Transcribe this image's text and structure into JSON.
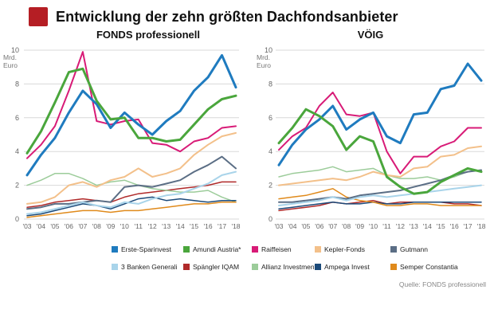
{
  "title": "Entwicklung der zehn größten Dachfondsanbieter",
  "accent_color": "#b51e24",
  "source": "Quelle: FONDS professionell",
  "chart_data": [
    {
      "type": "line",
      "title": "FONDS professionell",
      "ylabel": "Mrd. Euro",
      "ylim": [
        0,
        10
      ],
      "yticks": [
        0,
        2,
        4,
        6,
        8,
        10
      ],
      "grid": true,
      "x": [
        2003,
        2004,
        2005,
        2006,
        2007,
        2008,
        2009,
        2010,
        2011,
        2012,
        2013,
        2014,
        2015,
        2016,
        2017,
        2018
      ],
      "x_tick_labels": [
        "'03",
        "'04",
        "'05",
        "'06",
        "'07",
        "'08",
        "'09",
        "'10",
        "'11",
        "'12",
        "'13",
        "'14",
        "'15",
        "'16",
        "'17",
        "'18"
      ],
      "series": [
        {
          "name": "Erste-Sparinvest",
          "color": "#1f7bbf",
          "width": 3,
          "values": [
            2.6,
            3.8,
            4.8,
            6.3,
            7.6,
            6.8,
            5.4,
            6.3,
            5.6,
            5.0,
            5.8,
            6.4,
            7.6,
            8.4,
            9.7,
            7.8
          ]
        },
        {
          "name": "Amundi Austria*",
          "color": "#4aa63c",
          "width": 3,
          "values": [
            3.9,
            5.2,
            6.9,
            8.7,
            8.9,
            7.0,
            5.9,
            6.0,
            4.8,
            4.8,
            4.6,
            4.7,
            5.6,
            6.5,
            7.1,
            7.3
          ]
        },
        {
          "name": "Raiffeisen",
          "color": "#d81b77",
          "width": 2,
          "values": [
            3.6,
            4.4,
            5.5,
            7.6,
            9.9,
            5.8,
            5.6,
            5.8,
            5.9,
            4.5,
            4.4,
            4.0,
            4.6,
            4.8,
            5.4,
            5.5
          ]
        },
        {
          "name": "Kepler-Fonds",
          "color": "#f3c08a",
          "width": 2,
          "values": [
            0.9,
            1.0,
            1.3,
            2.0,
            2.2,
            1.9,
            2.3,
            2.5,
            3.0,
            2.5,
            2.7,
            3.0,
            3.8,
            4.4,
            4.9,
            5.1
          ]
        },
        {
          "name": "Gutmann",
          "color": "#5b6e85",
          "width": 2,
          "values": [
            0.6,
            0.7,
            0.9,
            0.9,
            1.0,
            1.1,
            1.0,
            1.9,
            2.0,
            1.9,
            2.1,
            2.3,
            2.8,
            3.2,
            3.7,
            3.0
          ]
        },
        {
          "name": "3 Banken Generali",
          "color": "#a9d4ea",
          "width": 2,
          "values": [
            0.3,
            0.4,
            0.6,
            0.8,
            1.0,
            0.8,
            0.7,
            1.0,
            0.9,
            1.2,
            1.4,
            1.5,
            1.8,
            2.1,
            2.6,
            2.8
          ]
        },
        {
          "name": "Spängler IQAM",
          "color": "#b02a2a",
          "width": 1.5,
          "values": [
            0.7,
            0.8,
            1.0,
            1.1,
            1.2,
            1.1,
            1.0,
            1.3,
            1.5,
            1.6,
            1.7,
            1.8,
            1.9,
            2.0,
            2.2,
            2.2
          ]
        },
        {
          "name": "Allianz Investment",
          "color": "#9ccc9a",
          "width": 1.5,
          "values": [
            2.0,
            2.3,
            2.7,
            2.7,
            2.4,
            2.0,
            2.2,
            2.3,
            2.0,
            1.8,
            1.7,
            1.6,
            1.6,
            1.7,
            1.3,
            1.0
          ]
        },
        {
          "name": "Ampega Invest",
          "color": "#1b4a7a",
          "width": 1.5,
          "values": [
            0.2,
            0.3,
            0.5,
            0.7,
            0.9,
            0.8,
            0.6,
            0.9,
            1.2,
            1.3,
            1.1,
            1.2,
            1.1,
            1.0,
            1.1,
            1.1
          ]
        },
        {
          "name": "Semper Constantia",
          "color": "#e08a1b",
          "width": 1.5,
          "values": [
            0.1,
            0.2,
            0.3,
            0.4,
            0.5,
            0.5,
            0.4,
            0.5,
            0.5,
            0.6,
            0.7,
            0.8,
            0.9,
            0.9,
            1.0,
            1.0
          ]
        }
      ]
    },
    {
      "type": "line",
      "title": "VÖIG",
      "ylabel": "Mrd. Euro",
      "ylim": [
        0,
        10
      ],
      "yticks": [
        0,
        2,
        4,
        6,
        8,
        10
      ],
      "grid": true,
      "x": [
        2003,
        2004,
        2005,
        2006,
        2007,
        2008,
        2009,
        2010,
        2011,
        2012,
        2013,
        2014,
        2015,
        2016,
        2017,
        2018
      ],
      "x_tick_labels": [
        "'03",
        "'04",
        "'05",
        "'06",
        "'07",
        "'08",
        "'09",
        "'10",
        "'11",
        "'12",
        "'13",
        "'14",
        "'15",
        "'16",
        "'17",
        "'18"
      ],
      "series": [
        {
          "name": "Erste-Sparinvest",
          "color": "#1f7bbf",
          "width": 3,
          "values": [
            3.2,
            4.4,
            5.3,
            5.9,
            6.7,
            5.3,
            5.9,
            6.3,
            4.9,
            4.5,
            6.2,
            6.3,
            7.7,
            7.9,
            9.2,
            8.2
          ]
        },
        {
          "name": "Amundi Austria*",
          "color": "#4aa63c",
          "width": 3,
          "values": [
            4.5,
            5.4,
            6.5,
            6.1,
            5.5,
            4.1,
            4.9,
            4.6,
            2.5,
            1.9,
            1.5,
            1.6,
            2.2,
            2.6,
            3.0,
            2.8
          ]
        },
        {
          "name": "Raiffeisen",
          "color": "#d81b77",
          "width": 2,
          "values": [
            4.1,
            4.9,
            5.4,
            6.7,
            7.5,
            6.2,
            6.1,
            6.3,
            4.0,
            2.7,
            3.7,
            3.7,
            4.3,
            4.6,
            5.4,
            5.4
          ]
        },
        {
          "name": "Kepler-Fonds",
          "color": "#f3c08a",
          "width": 2,
          "values": [
            2.0,
            2.1,
            2.2,
            2.3,
            2.4,
            2.3,
            2.5,
            2.8,
            2.6,
            2.5,
            3.0,
            3.1,
            3.7,
            3.8,
            4.2,
            4.3
          ]
        },
        {
          "name": "Gutmann",
          "color": "#5b6e85",
          "width": 2,
          "values": [
            1.0,
            1.0,
            1.1,
            1.2,
            1.3,
            1.2,
            1.4,
            1.5,
            1.6,
            1.7,
            1.9,
            2.1,
            2.3,
            2.6,
            2.8,
            2.9
          ]
        },
        {
          "name": "3 Banken Generali",
          "color": "#a9d4ea",
          "width": 2,
          "values": [
            0.8,
            0.9,
            1.0,
            1.1,
            1.3,
            1.1,
            1.3,
            1.4,
            1.3,
            1.4,
            1.5,
            1.6,
            1.7,
            1.8,
            1.9,
            2.0
          ]
        },
        {
          "name": "Spängler IQAM",
          "color": "#b02a2a",
          "width": 1.5,
          "values": [
            0.5,
            0.6,
            0.7,
            0.8,
            1.0,
            0.9,
            1.0,
            1.1,
            0.9,
            1.0,
            1.0,
            1.0,
            1.0,
            0.9,
            0.9,
            0.8
          ]
        },
        {
          "name": "Allianz Investment",
          "color": "#9ccc9a",
          "width": 1.5,
          "values": [
            2.5,
            2.7,
            2.8,
            2.9,
            3.1,
            2.8,
            2.9,
            3.0,
            2.6,
            2.4,
            2.4,
            2.5,
            2.3,
            2.5,
            2.8,
            2.9
          ]
        },
        {
          "name": "Ampega Invest",
          "color": "#1b4a7a",
          "width": 1.5,
          "values": [
            0.6,
            0.7,
            0.8,
            0.9,
            1.0,
            0.9,
            0.9,
            1.0,
            0.9,
            0.9,
            1.0,
            1.0,
            1.0,
            1.0,
            1.0,
            1.0
          ]
        },
        {
          "name": "Semper Constantia",
          "color": "#e08a1b",
          "width": 1.5,
          "values": [
            1.2,
            1.3,
            1.4,
            1.6,
            1.8,
            1.3,
            1.1,
            1.0,
            0.8,
            0.8,
            0.9,
            0.9,
            0.8,
            0.8,
            0.8,
            0.8
          ]
        }
      ]
    }
  ],
  "legend": [
    {
      "label": "Erste-Sparinvest",
      "color": "#1f7bbf"
    },
    {
      "label": "Amundi Austria*",
      "color": "#4aa63c"
    },
    {
      "label": "Raiffeisen",
      "color": "#d81b77"
    },
    {
      "label": "Kepler-Fonds",
      "color": "#f3c08a"
    },
    {
      "label": "Gutmann",
      "color": "#5b6e85"
    },
    {
      "label": "3 Banken Generali",
      "color": "#a9d4ea"
    },
    {
      "label": "Spängler IQAM",
      "color": "#b02a2a"
    },
    {
      "label": "Allianz Investment",
      "color": "#9ccc9a"
    },
    {
      "label": "Ampega Invest",
      "color": "#1b4a7a"
    },
    {
      "label": "Semper Constantia",
      "color": "#e08a1b"
    }
  ]
}
